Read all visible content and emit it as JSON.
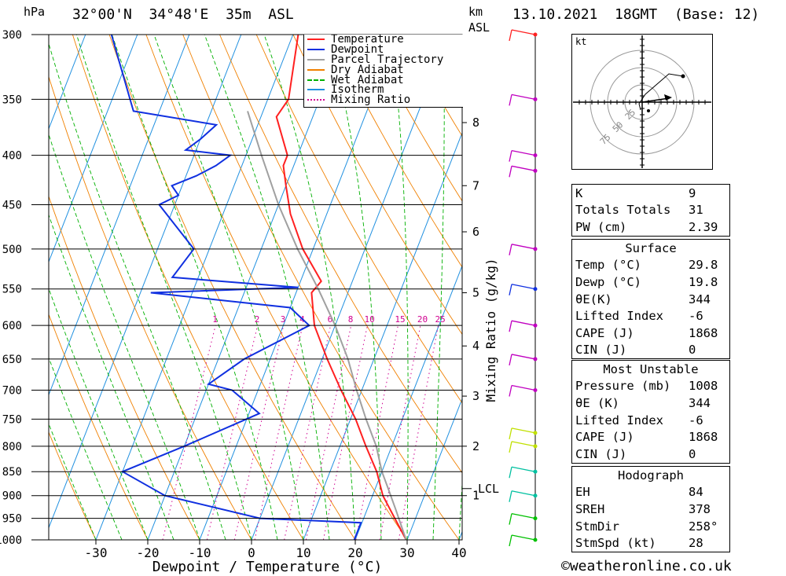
{
  "header": {
    "location": "32°00'N  34°48'E  35m  ASL",
    "datetime": "13.10.2021  18GMT  (Base: 12)",
    "hpa_label": "hPa",
    "km_label": "km",
    "asl_label": "ASL"
  },
  "legend": [
    "Temperature",
    "Dewpoint",
    "Parcel Trajectory",
    "Dry Adiabat",
    "Wet Adiabat",
    "Isotherm",
    "Mixing Ratio"
  ],
  "colors": {
    "temperature": "#ff2020",
    "dewpoint": "#1030e0",
    "parcel": "#a0a0a0",
    "dry_adiabat": "#f08000",
    "wet_adiabat": "#00b000",
    "isotherm": "#2090e0",
    "mixing_ratio": "#d00090"
  },
  "chart_data": {
    "type": "line",
    "title": "32°00'N  34°48'E  35m  ASL",
    "xlabel": "Dewpoint / Temperature (°C)",
    "ylabel": "hPa",
    "right_label": "Mixing Ratio (g/kg)",
    "pressure_levels": [
      300,
      350,
      400,
      450,
      500,
      550,
      600,
      650,
      700,
      750,
      800,
      850,
      900,
      950,
      1000
    ],
    "x_ticks": [
      -30,
      -20,
      -10,
      0,
      10,
      20,
      30,
      40
    ],
    "km_ticks": [
      {
        "label": "8",
        "p": 370
      },
      {
        "label": "7",
        "p": 430
      },
      {
        "label": "6",
        "p": 480
      },
      {
        "label": "5",
        "p": 555
      },
      {
        "label": "4",
        "p": 630
      },
      {
        "label": "3",
        "p": 710
      },
      {
        "label": "2",
        "p": 800
      },
      {
        "label": "1",
        "p": 900
      }
    ],
    "lcl": {
      "label": "LCL",
      "p": 885
    },
    "mixing_ratio_labels": [
      "1",
      "2",
      "3",
      "4",
      "6",
      "8",
      "10",
      "15",
      "20",
      "25"
    ],
    "series": [
      {
        "name": "Temperature",
        "points": [
          [
            -29,
            300
          ],
          [
            -26,
            350
          ],
          [
            -27,
            365
          ],
          [
            -22,
            400
          ],
          [
            -22,
            410
          ],
          [
            -20,
            430
          ],
          [
            -17,
            460
          ],
          [
            -12,
            500
          ],
          [
            -6,
            540
          ],
          [
            -7,
            555
          ],
          [
            -4,
            600
          ],
          [
            1,
            650
          ],
          [
            6,
            700
          ],
          [
            11,
            750
          ],
          [
            15,
            800
          ],
          [
            19,
            850
          ],
          [
            22,
            900
          ],
          [
            26,
            950
          ],
          [
            29.8,
            1000
          ]
        ]
      },
      {
        "name": "Dewpoint",
        "points": [
          [
            -65,
            300
          ],
          [
            -55,
            360
          ],
          [
            -38,
            372
          ],
          [
            -40,
            385
          ],
          [
            -42,
            395
          ],
          [
            -33,
            400
          ],
          [
            -35,
            410
          ],
          [
            -38,
            420
          ],
          [
            -42,
            430
          ],
          [
            -40,
            440
          ],
          [
            -43,
            450
          ],
          [
            -33,
            500
          ],
          [
            -35,
            535
          ],
          [
            -10,
            548
          ],
          [
            -38,
            555
          ],
          [
            -10,
            575
          ],
          [
            -5,
            600
          ],
          [
            -15,
            650
          ],
          [
            -20,
            690
          ],
          [
            -15,
            700
          ],
          [
            -8,
            740
          ],
          [
            -20,
            800
          ],
          [
            -30,
            850
          ],
          [
            -20,
            900
          ],
          [
            0,
            950
          ],
          [
            19.8,
            960
          ],
          [
            19.8,
            1000
          ]
        ]
      },
      {
        "name": "Parcel Trajectory",
        "points": [
          [
            -33,
            360
          ],
          [
            -27,
            400
          ],
          [
            -20,
            450
          ],
          [
            -13,
            500
          ],
          [
            -6,
            550
          ],
          [
            0,
            600
          ],
          [
            5,
            650
          ],
          [
            9,
            700
          ],
          [
            13,
            750
          ],
          [
            17,
            800
          ],
          [
            20,
            850
          ],
          [
            22.5,
            885
          ],
          [
            25.5,
            930
          ],
          [
            29.8,
            1000
          ]
        ]
      }
    ]
  },
  "winds": [
    {
      "p": 300,
      "color": "#ff2020"
    },
    {
      "p": 350,
      "color": "#c000c0"
    },
    {
      "p": 400,
      "color": "#c000c0"
    },
    {
      "p": 415,
      "color": "#c000c0"
    },
    {
      "p": 500,
      "color": "#c000c0"
    },
    {
      "p": 550,
      "color": "#1030e0"
    },
    {
      "p": 600,
      "color": "#c000c0"
    },
    {
      "p": 650,
      "color": "#c000c0"
    },
    {
      "p": 700,
      "color": "#c000c0"
    },
    {
      "p": 775,
      "color": "#c0e000"
    },
    {
      "p": 800,
      "color": "#c0e000"
    },
    {
      "p": 850,
      "color": "#00c0a0"
    },
    {
      "p": 900,
      "color": "#00c0a0"
    },
    {
      "p": 950,
      "color": "#00c000"
    },
    {
      "p": 1000,
      "color": "#00c000"
    }
  ],
  "hodograph": {
    "unit": "kt",
    "rings": [
      "25",
      "50",
      "75"
    ]
  },
  "indices": [
    {
      "k": "K",
      "v": "9"
    },
    {
      "k": "Totals Totals",
      "v": "31"
    },
    {
      "k": "PW (cm)",
      "v": "2.39"
    }
  ],
  "surface": {
    "title": "Surface",
    "rows": [
      {
        "k": "Temp (°C)",
        "v": "29.8"
      },
      {
        "k": "Dewp (°C)",
        "v": "19.8"
      },
      {
        "k": "θE(K)",
        "v": "344"
      },
      {
        "k": "Lifted Index",
        "v": "-6"
      },
      {
        "k": "CAPE (J)",
        "v": "1868"
      },
      {
        "k": "CIN (J)",
        "v": "0"
      }
    ]
  },
  "most_unstable": {
    "title": "Most Unstable",
    "rows": [
      {
        "k": "Pressure (mb)",
        "v": "1008"
      },
      {
        "k": "θE (K)",
        "v": "344"
      },
      {
        "k": "Lifted Index",
        "v": "-6"
      },
      {
        "k": "CAPE (J)",
        "v": "1868"
      },
      {
        "k": "CIN (J)",
        "v": "0"
      }
    ]
  },
  "hodo_table": {
    "title": "Hodograph",
    "rows": [
      {
        "k": "EH",
        "v": "84"
      },
      {
        "k": "SREH",
        "v": "378"
      },
      {
        "k": "StmDir",
        "v": "258°"
      },
      {
        "k": "StmSpd (kt)",
        "v": "28"
      }
    ]
  },
  "footer": {
    "copyright": "©weatheronline.co.uk"
  }
}
